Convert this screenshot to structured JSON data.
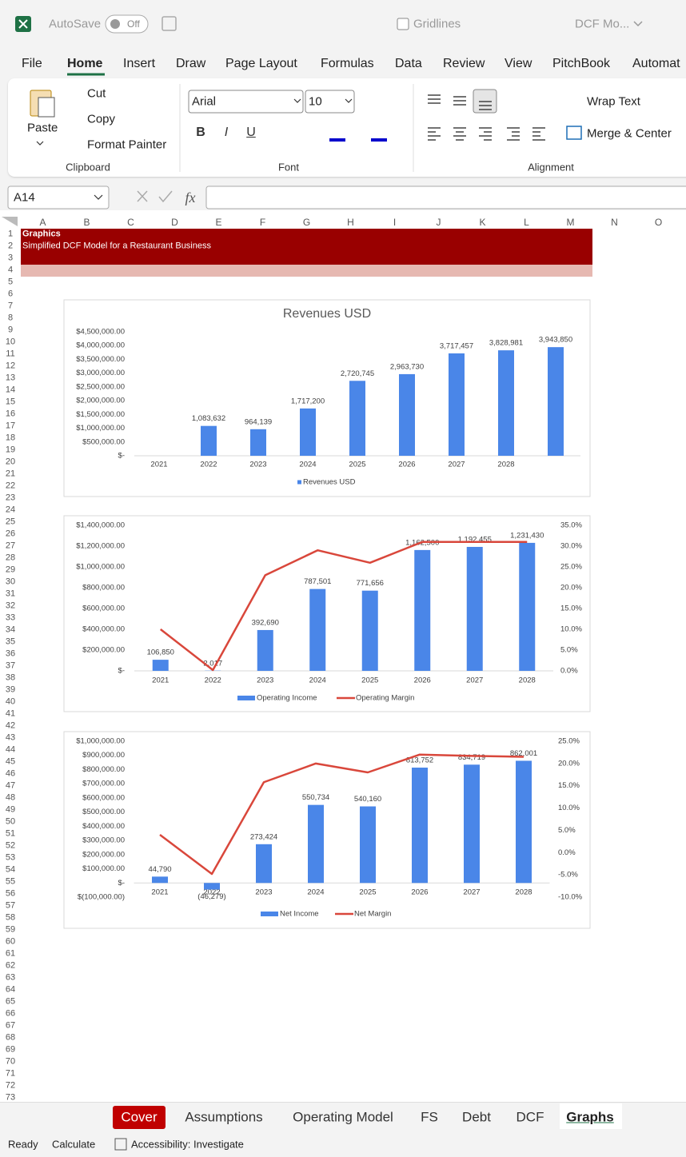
{
  "title_bar": {
    "autosave": "AutoSave",
    "toggle": "Off",
    "gridlines": "Gridlines",
    "file_name": "DCF Mo..."
  },
  "ribbon_tabs": [
    "File",
    "Home",
    "Insert",
    "Draw",
    "Page Layout",
    "Formulas",
    "Data",
    "Review",
    "View",
    "PitchBook",
    "Automat"
  ],
  "clipboard": {
    "paste": "Paste",
    "cut": "Cut",
    "copy": "Copy",
    "format_painter": "Format Painter",
    "group": "Clipboard"
  },
  "font": {
    "name": "Arial",
    "size": 10,
    "buttons": [
      "B",
      "I",
      "U"
    ],
    "group": "Font"
  },
  "alignment": {
    "wrap_text": "Wrap Text",
    "merge_center": "Merge & Center",
    "group": "Alignment"
  },
  "name_box": "A14",
  "formula_icon": "fx",
  "columns": [
    "A",
    "B",
    "C",
    "D",
    "E",
    "F",
    "G",
    "H",
    "I",
    "J",
    "K",
    "L",
    "M",
    "N",
    "O"
  ],
  "rows": [
    1,
    2,
    3,
    4,
    5,
    6,
    7,
    8,
    9,
    10,
    11,
    12,
    13,
    14,
    15,
    16,
    17,
    18,
    19,
    20,
    21,
    22,
    23,
    24,
    25,
    26,
    27,
    28,
    29,
    30,
    31,
    32,
    33,
    34,
    35,
    36,
    37,
    38,
    39,
    40,
    41,
    42,
    43,
    44,
    45,
    46,
    47,
    48,
    49,
    50,
    51,
    52,
    53,
    54,
    55,
    56,
    57,
    58,
    59,
    60,
    61,
    62,
    63,
    64,
    65,
    66,
    67,
    68,
    69,
    70,
    71,
    72,
    73
  ],
  "cells": {
    "A1": "Graphics",
    "A2": "Simplified DCF Model for a Restaurant Business"
  },
  "chart_data": [
    {
      "type": "bar",
      "title": "Revenues USD",
      "categories": [
        "2021",
        "2022",
        "2023",
        "2024",
        "2025",
        "2026",
        "2027",
        "2028",
        null
      ],
      "series": [
        {
          "name": "Revenues USD",
          "type": "bar",
          "color": "#4a86e8",
          "values": [
            null,
            1083632,
            964139,
            1717200,
            2720745,
            2963730,
            3717457,
            3828981,
            3943850
          ],
          "value_labels": [
            null,
            "1,083,632",
            "964,139",
            "1,717,200",
            "2,720,745",
            "2,963,730",
            "3,717,457",
            "3,828,981",
            "3,943,850"
          ]
        }
      ],
      "ylim": [
        0,
        4500000
      ],
      "yticks": [
        {
          "value": 0,
          "label": "$-"
        },
        {
          "value": 500000,
          "label": "$500,000.00"
        },
        {
          "value": 1000000,
          "label": "$1,000,000.00"
        },
        {
          "value": 1500000,
          "label": "$1,500,000.00"
        },
        {
          "value": 2000000,
          "label": "$2,000,000.00"
        },
        {
          "value": 2500000,
          "label": "$2,500,000.00"
        },
        {
          "value": 3000000,
          "label": "$3,000,000.00"
        },
        {
          "value": 3500000,
          "label": "$3,500,000.00"
        },
        {
          "value": 4000000,
          "label": "$4,000,000.00"
        },
        {
          "value": 4500000,
          "label": "$4,500,000.00"
        }
      ],
      "legend": "bottom"
    },
    {
      "type": "combo",
      "categories": [
        "2021",
        "2022",
        "2023",
        "2024",
        "2025",
        "2026",
        "2027",
        "2028"
      ],
      "series": [
        {
          "name": "Operating Income",
          "type": "bar",
          "color": "#4a86e8",
          "values": [
            106850,
            2017,
            392690,
            787501,
            771656,
            1162500,
            1192455,
            1231430
          ],
          "value_labels": [
            "106,850",
            "2,017",
            "392,690",
            "787,501",
            "771,656",
            "1,162,500",
            "1,192,455",
            "1,231,430"
          ]
        },
        {
          "name": "Operating Margin",
          "type": "line",
          "axis": "y2",
          "color": "#d9473b",
          "values": [
            10,
            0.2,
            23,
            29,
            26,
            31,
            31,
            31
          ]
        }
      ],
      "ylim": [
        0,
        1400000
      ],
      "yticks": [
        {
          "value": 0,
          "label": "$-"
        },
        {
          "value": 200000,
          "label": "$200,000.00"
        },
        {
          "value": 400000,
          "label": "$400,000.00"
        },
        {
          "value": 600000,
          "label": "$600,000.00"
        },
        {
          "value": 800000,
          "label": "$800,000.00"
        },
        {
          "value": 1000000,
          "label": "$1,000,000.00"
        },
        {
          "value": 1200000,
          "label": "$1,200,000.00"
        },
        {
          "value": 1400000,
          "label": "$1,400,000.00"
        }
      ],
      "y2lim": [
        0,
        35
      ],
      "y2ticks": [
        {
          "value": 0,
          "label": "0.0%"
        },
        {
          "value": 5,
          "label": "5.0%"
        },
        {
          "value": 10,
          "label": "10.0%"
        },
        {
          "value": 15,
          "label": "15.0%"
        },
        {
          "value": 20,
          "label": "20.0%"
        },
        {
          "value": 25,
          "label": "25.0%"
        },
        {
          "value": 30,
          "label": "30.0%"
        },
        {
          "value": 35,
          "label": "35.0%"
        }
      ],
      "legend": "bottom"
    },
    {
      "type": "combo",
      "categories": [
        "2021",
        "2022",
        "2023",
        "2024",
        "2025",
        "2026",
        "2027",
        "2028"
      ],
      "series": [
        {
          "name": "Net Income",
          "type": "bar",
          "color": "#4a86e8",
          "values": [
            44790,
            -46279,
            273424,
            550734,
            540160,
            813752,
            834719,
            862001
          ],
          "value_labels": [
            "44,790",
            "(46,279)",
            "273,424",
            "550,734",
            "540,160",
            "813,752",
            "834,719",
            "862,001"
          ]
        },
        {
          "name": "Net Margin",
          "type": "line",
          "axis": "y2",
          "color": "#d9473b",
          "values": [
            4,
            -4.8,
            15.8,
            20,
            18,
            22,
            21.7,
            21.5
          ]
        }
      ],
      "ylim": [
        -100000,
        1000000
      ],
      "yticks": [
        {
          "value": -100000,
          "label": "$(100,000.00)"
        },
        {
          "value": 0,
          "label": "$-"
        },
        {
          "value": 100000,
          "label": "$100,000.00"
        },
        {
          "value": 200000,
          "label": "$200,000.00"
        },
        {
          "value": 300000,
          "label": "$300,000.00"
        },
        {
          "value": 400000,
          "label": "$400,000.00"
        },
        {
          "value": 500000,
          "label": "$500,000.00"
        },
        {
          "value": 600000,
          "label": "$600,000.00"
        },
        {
          "value": 700000,
          "label": "$700,000.00"
        },
        {
          "value": 800000,
          "label": "$800,000.00"
        },
        {
          "value": 900000,
          "label": "$900,000.00"
        },
        {
          "value": 1000000,
          "label": "$1,000,000.00"
        }
      ],
      "y2lim": [
        -10,
        25
      ],
      "y2ticks": [
        {
          "value": -10,
          "label": "-10.0%"
        },
        {
          "value": -5,
          "label": "-5.0%"
        },
        {
          "value": 0,
          "label": "0.0%"
        },
        {
          "value": 5,
          "label": "5.0%"
        },
        {
          "value": 10,
          "label": "10.0%"
        },
        {
          "value": 15,
          "label": "15.0%"
        },
        {
          "value": 20,
          "label": "20.0%"
        },
        {
          "value": 25,
          "label": "25.0%"
        }
      ],
      "legend": "bottom"
    }
  ],
  "sheet_tabs": [
    "Cover",
    "Assumptions",
    "Operating Model",
    "FS",
    "Debt",
    "DCF",
    "Graphs"
  ],
  "status_bar": {
    "ready": "Ready",
    "calculate": "Calculate",
    "accessibility": "Accessibility: Investigate"
  }
}
